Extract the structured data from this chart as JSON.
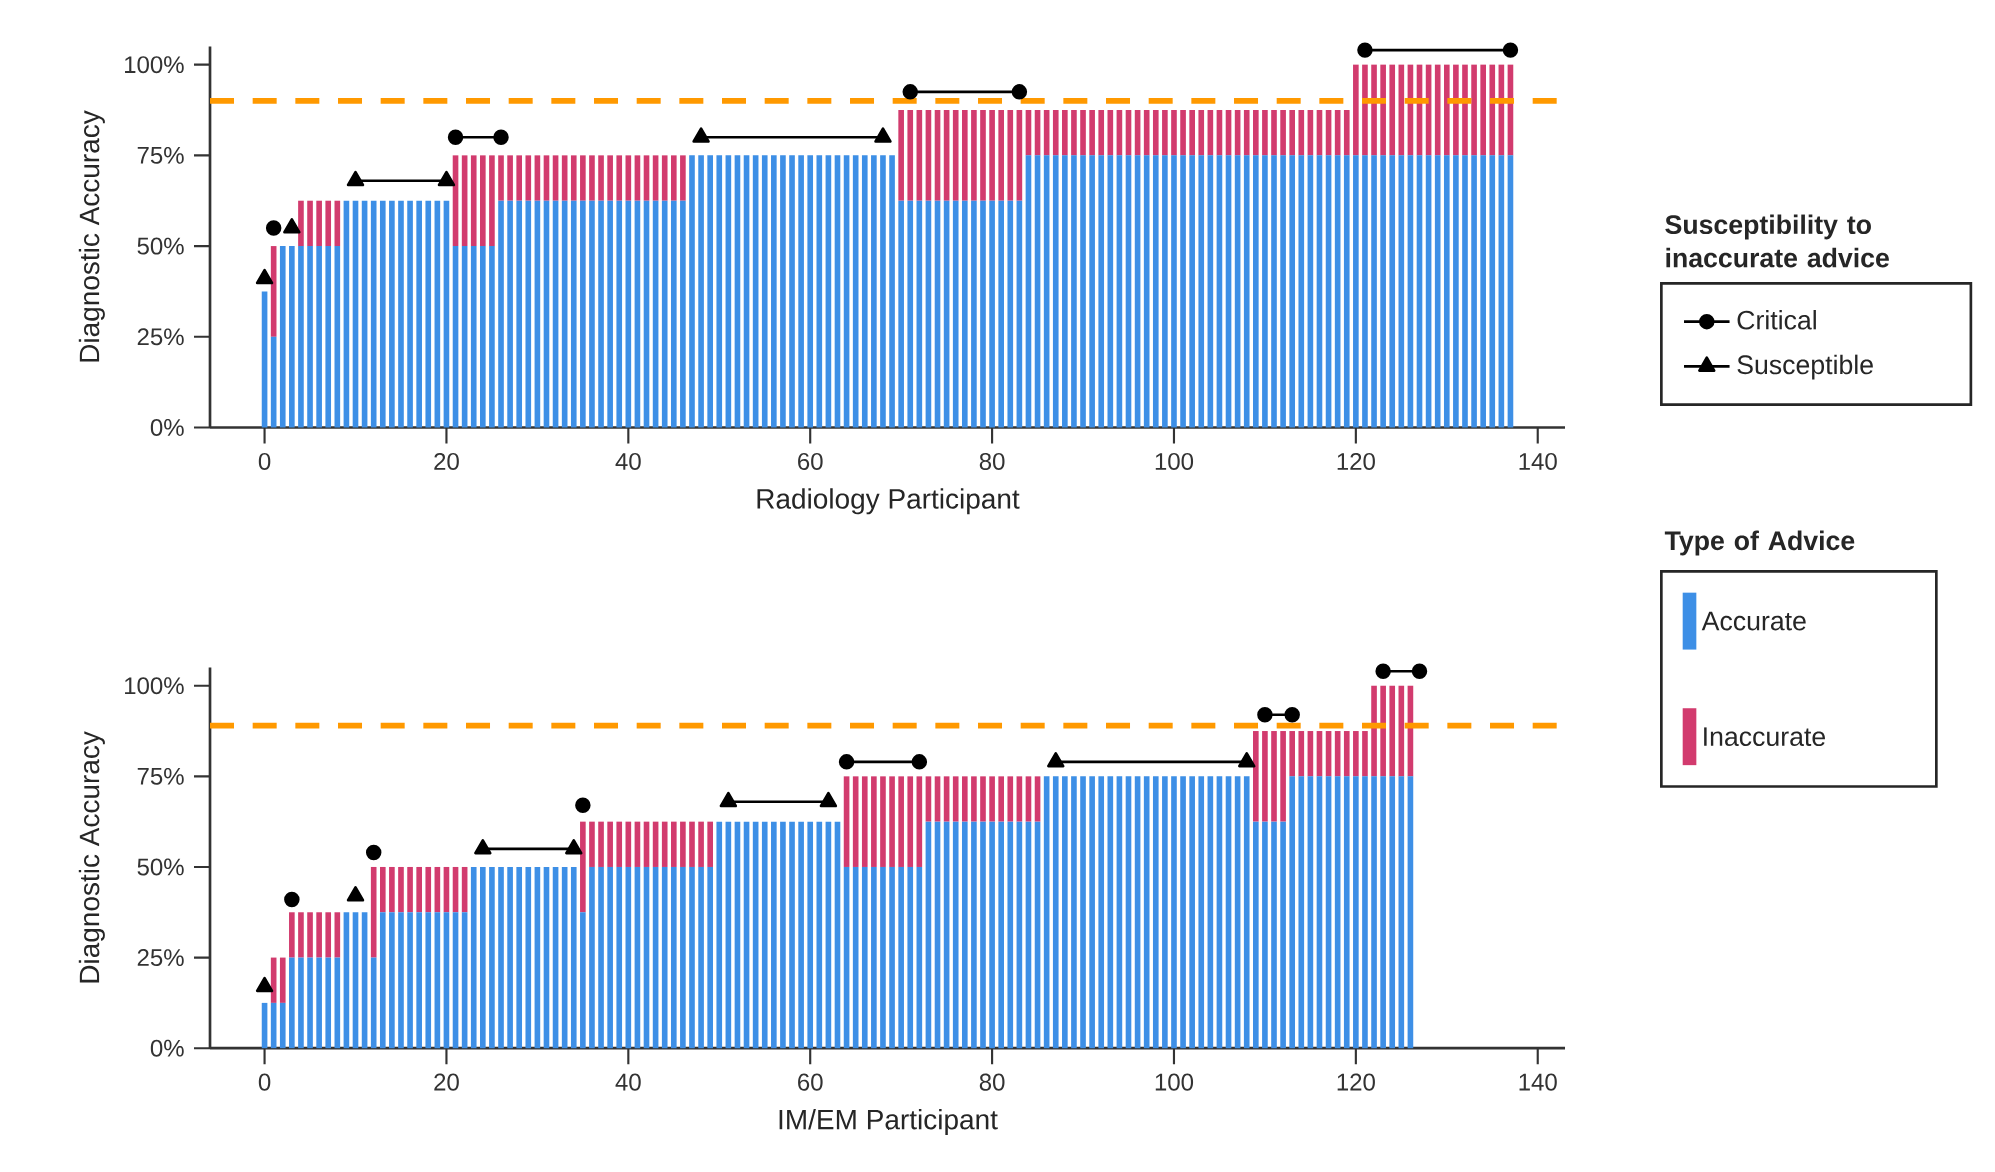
{
  "chart_data": [
    {
      "type": "bar",
      "stacked": true,
      "xlabel": "Radiology Participant",
      "ylabel": "Diagnostic Accuracy",
      "legend": "right",
      "legend_title": "Susceptibility to inaccurate advice",
      "xlim": [
        -6,
        143
      ],
      "xticks": [
        0,
        20,
        40,
        60,
        80,
        100,
        120,
        140
      ],
      "ylim": [
        0,
        105
      ],
      "yticks": [
        {
          "value": 0,
          "label": "0%"
        },
        {
          "value": 25,
          "label": "25%"
        },
        {
          "value": 50,
          "label": "50%"
        },
        {
          "value": 75,
          "label": "75%"
        },
        {
          "value": 100,
          "label": "100%"
        }
      ],
      "ref_lines": [
        {
          "axis": "y",
          "value": 90,
          "color": "#ff9900",
          "line_style": "dashed"
        }
      ],
      "x": [
        0,
        1,
        2,
        3,
        4,
        5,
        6,
        7,
        8,
        9,
        10,
        11,
        12,
        13,
        14,
        15,
        16,
        17,
        18,
        19,
        20,
        21,
        22,
        23,
        24,
        25,
        26,
        27,
        28,
        29,
        30,
        31,
        32,
        33,
        34,
        35,
        36,
        37,
        38,
        39,
        40,
        41,
        42,
        43,
        44,
        45,
        46,
        47,
        48,
        49,
        50,
        51,
        52,
        53,
        54,
        55,
        56,
        57,
        58,
        59,
        60,
        61,
        62,
        63,
        64,
        65,
        66,
        67,
        68,
        69,
        70,
        71,
        72,
        73,
        74,
        75,
        76,
        77,
        78,
        79,
        80,
        81,
        82,
        83,
        84,
        85,
        86,
        87,
        88,
        89,
        90,
        91,
        92,
        93,
        94,
        95,
        96,
        97,
        98,
        99,
        100,
        101,
        102,
        103,
        104,
        105,
        106,
        107,
        108,
        109,
        110,
        111,
        112,
        113,
        114,
        115,
        116,
        117,
        118,
        119,
        120,
        121,
        122,
        123,
        124,
        125,
        126,
        127,
        128,
        129,
        130,
        131,
        132,
        133,
        134,
        135,
        136,
        137
      ],
      "series": [
        {
          "color": "#3d8fe6",
          "values": [
            37.5,
            25,
            50,
            50,
            50,
            50,
            50,
            50,
            50,
            62.5,
            62.5,
            62.5,
            62.5,
            62.5,
            62.5,
            62.5,
            62.5,
            62.5,
            62.5,
            62.5,
            62.5,
            50,
            50,
            50,
            50,
            50,
            62.5,
            62.5,
            62.5,
            62.5,
            62.5,
            62.5,
            62.5,
            62.5,
            62.5,
            62.5,
            62.5,
            62.5,
            62.5,
            62.5,
            62.5,
            62.5,
            62.5,
            62.5,
            62.5,
            62.5,
            62.5,
            75,
            75,
            75,
            75,
            75,
            75,
            75,
            75,
            75,
            75,
            75,
            75,
            75,
            75,
            75,
            75,
            75,
            75,
            75,
            75,
            75,
            75,
            75,
            62.5,
            62.5,
            62.5,
            62.5,
            62.5,
            62.5,
            62.5,
            62.5,
            62.5,
            62.5,
            62.5,
            62.5,
            62.5,
            62.5,
            75,
            75,
            75,
            75,
            75,
            75,
            75,
            75,
            75,
            75,
            75,
            75,
            75,
            75,
            75,
            75,
            75,
            75,
            75,
            75,
            75,
            75,
            75,
            75,
            75,
            75,
            75,
            75,
            75,
            75,
            75,
            75,
            75,
            75,
            75,
            75,
            75,
            75,
            75,
            75,
            75,
            75,
            75,
            75,
            75,
            75,
            75,
            75,
            75,
            75,
            75,
            75,
            75,
            75
          ]
        },
        {
          "color": "#d23b6e",
          "values": [
            0,
            25,
            0,
            0,
            12.5,
            12.5,
            12.5,
            12.5,
            12.5,
            0,
            0,
            0,
            0,
            0,
            0,
            0,
            0,
            0,
            0,
            0,
            0,
            25,
            25,
            25,
            25,
            25,
            12.5,
            12.5,
            12.5,
            12.5,
            12.5,
            12.5,
            12.5,
            12.5,
            12.5,
            12.5,
            12.5,
            12.5,
            12.5,
            12.5,
            12.5,
            12.5,
            12.5,
            12.5,
            12.5,
            12.5,
            12.5,
            0,
            0,
            0,
            0,
            0,
            0,
            0,
            0,
            0,
            0,
            0,
            0,
            0,
            0,
            0,
            0,
            0,
            0,
            0,
            0,
            0,
            0,
            0,
            25,
            25,
            25,
            25,
            25,
            25,
            25,
            25,
            25,
            25,
            25,
            25,
            25,
            25,
            12.5,
            12.5,
            12.5,
            12.5,
            12.5,
            12.5,
            12.5,
            12.5,
            12.5,
            12.5,
            12.5,
            12.5,
            12.5,
            12.5,
            12.5,
            12.5,
            12.5,
            12.5,
            12.5,
            12.5,
            12.5,
            12.5,
            12.5,
            12.5,
            12.5,
            12.5,
            12.5,
            12.5,
            12.5,
            12.5,
            12.5,
            12.5,
            12.5,
            12.5,
            12.5,
            12.5,
            25,
            25,
            25,
            25,
            25,
            25,
            25,
            25,
            25,
            25,
            25,
            25,
            25,
            25,
            25,
            25,
            25,
            25
          ]
        },
        {
          "type": "line",
          "name": "Critical",
          "color": "#000000",
          "marker": "circle",
          "x": [
            1,
            null,
            21,
            26,
            null,
            71,
            83,
            null,
            121,
            137
          ],
          "values": [
            55,
            null,
            80,
            80,
            null,
            92.5,
            92.5,
            null,
            104,
            104
          ]
        },
        {
          "type": "line",
          "name": "Susceptible",
          "color": "#000000",
          "marker": "triangle",
          "x": [
            0,
            null,
            3,
            null,
            10,
            20,
            null,
            48,
            68
          ],
          "values": [
            41,
            null,
            55,
            null,
            68,
            68,
            null,
            80,
            80
          ]
        }
      ]
    },
    {
      "type": "bar",
      "stacked": true,
      "xlabel": "IM/EM Participant",
      "ylabel": "Diagnostic Accuracy",
      "legend": "right",
      "legend_title": "Type of Advice",
      "xlim": [
        -6,
        143
      ],
      "xticks": [
        0,
        20,
        40,
        60,
        80,
        100,
        120,
        140
      ],
      "ylim": [
        0,
        105
      ],
      "yticks": [
        {
          "value": 0,
          "label": "0%"
        },
        {
          "value": 25,
          "label": "25%"
        },
        {
          "value": 50,
          "label": "50%"
        },
        {
          "value": 75,
          "label": "75%"
        },
        {
          "value": 100,
          "label": "100%"
        }
      ],
      "ref_lines": [
        {
          "axis": "y",
          "value": 89,
          "color": "#ff9900",
          "line_style": "dashed"
        }
      ],
      "x": [
        0,
        1,
        2,
        3,
        4,
        5,
        6,
        7,
        8,
        9,
        10,
        11,
        12,
        13,
        14,
        15,
        16,
        17,
        18,
        19,
        20,
        21,
        22,
        23,
        24,
        25,
        26,
        27,
        28,
        29,
        30,
        31,
        32,
        33,
        34,
        35,
        36,
        37,
        38,
        39,
        40,
        41,
        42,
        43,
        44,
        45,
        46,
        47,
        48,
        49,
        50,
        51,
        52,
        53,
        54,
        55,
        56,
        57,
        58,
        59,
        60,
        61,
        62,
        63,
        64,
        65,
        66,
        67,
        68,
        69,
        70,
        71,
        72,
        73,
        74,
        75,
        76,
        77,
        78,
        79,
        80,
        81,
        82,
        83,
        84,
        85,
        86,
        87,
        88,
        89,
        90,
        91,
        92,
        93,
        94,
        95,
        96,
        97,
        98,
        99,
        100,
        101,
        102,
        103,
        104,
        105,
        106,
        107,
        108,
        109,
        110,
        111,
        112,
        113,
        114,
        115,
        116,
        117,
        118,
        119,
        120,
        121,
        122,
        123,
        124,
        125,
        126
      ],
      "series": [
        {
          "name": "Accurate",
          "color": "#3d8fe6",
          "values": [
            12.5,
            12.5,
            12.5,
            25,
            25,
            25,
            25,
            25,
            25,
            37.5,
            37.5,
            37.5,
            25,
            37.5,
            37.5,
            37.5,
            37.5,
            37.5,
            37.5,
            37.5,
            37.5,
            37.5,
            37.5,
            50,
            50,
            50,
            50,
            50,
            50,
            50,
            50,
            50,
            50,
            50,
            50,
            37.5,
            50,
            50,
            50,
            50,
            50,
            50,
            50,
            50,
            50,
            50,
            50,
            50,
            50,
            50,
            62.5,
            62.5,
            62.5,
            62.5,
            62.5,
            62.5,
            62.5,
            62.5,
            62.5,
            62.5,
            62.5,
            62.5,
            62.5,
            62.5,
            50,
            50,
            50,
            50,
            50,
            50,
            50,
            50,
            50,
            62.5,
            62.5,
            62.5,
            62.5,
            62.5,
            62.5,
            62.5,
            62.5,
            62.5,
            62.5,
            62.5,
            62.5,
            62.5,
            75,
            75,
            75,
            75,
            75,
            75,
            75,
            75,
            75,
            75,
            75,
            75,
            75,
            75,
            75,
            75,
            75,
            75,
            75,
            75,
            75,
            75,
            75,
            62.5,
            62.5,
            62.5,
            62.5,
            75,
            75,
            75,
            75,
            75,
            75,
            75,
            75,
            75,
            75,
            75,
            75,
            75,
            75
          ]
        },
        {
          "name": "Inaccurate",
          "color": "#d23b6e",
          "values": [
            0,
            12.5,
            12.5,
            12.5,
            12.5,
            12.5,
            12.5,
            12.5,
            12.5,
            0,
            0,
            0,
            25,
            12.5,
            12.5,
            12.5,
            12.5,
            12.5,
            12.5,
            12.5,
            12.5,
            12.5,
            12.5,
            0,
            0,
            0,
            0,
            0,
            0,
            0,
            0,
            0,
            0,
            0,
            0,
            25,
            12.5,
            12.5,
            12.5,
            12.5,
            12.5,
            12.5,
            12.5,
            12.5,
            12.5,
            12.5,
            12.5,
            12.5,
            12.5,
            12.5,
            0,
            0,
            0,
            0,
            0,
            0,
            0,
            0,
            0,
            0,
            0,
            0,
            0,
            0,
            25,
            25,
            25,
            25,
            25,
            25,
            25,
            25,
            25,
            12.5,
            12.5,
            12.5,
            12.5,
            12.5,
            12.5,
            12.5,
            12.5,
            12.5,
            12.5,
            12.5,
            12.5,
            12.5,
            0,
            0,
            0,
            0,
            0,
            0,
            0,
            0,
            0,
            0,
            0,
            0,
            0,
            0,
            0,
            0,
            0,
            0,
            0,
            0,
            0,
            0,
            0,
            25,
            25,
            25,
            25,
            12.5,
            12.5,
            12.5,
            12.5,
            12.5,
            12.5,
            12.5,
            12.5,
            12.5,
            25,
            25,
            25,
            25,
            25
          ]
        },
        {
          "type": "line",
          "color": "#000000",
          "marker": "circle",
          "x": [
            3,
            null,
            12,
            null,
            35,
            null,
            64,
            72,
            null,
            110,
            113,
            null,
            123,
            127
          ],
          "values": [
            41,
            null,
            54,
            null,
            67,
            null,
            79,
            79,
            null,
            92,
            92,
            null,
            104,
            104
          ]
        },
        {
          "type": "line",
          "color": "#000000",
          "marker": "triangle",
          "x": [
            0,
            null,
            10,
            null,
            24,
            34,
            null,
            51,
            62,
            null,
            87,
            108
          ],
          "values": [
            17,
            null,
            42,
            null,
            55,
            55,
            null,
            68,
            68,
            null,
            79,
            79
          ]
        }
      ]
    }
  ]
}
